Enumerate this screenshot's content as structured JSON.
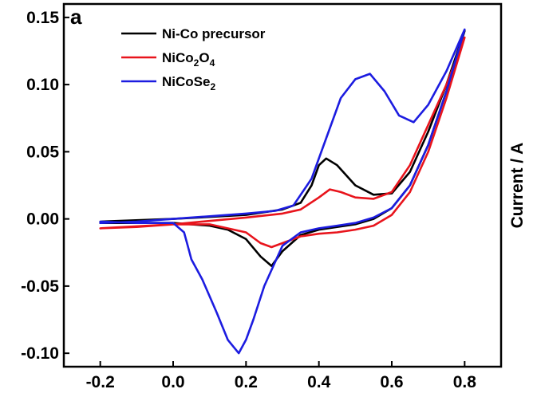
{
  "chart_data": {
    "type": "line",
    "panel_label": "a",
    "title": "",
    "xlabel": "",
    "ylabel": "Current / A",
    "xlim": [
      -0.3,
      0.9
    ],
    "ylim": [
      -0.11,
      0.16
    ],
    "xticks": [
      -0.2,
      0.0,
      0.2,
      0.4,
      0.6,
      0.8
    ],
    "xtick_labels": [
      "-0.2",
      "0.0",
      "0.2",
      "0.4",
      "0.6",
      "0.8"
    ],
    "yticks": [
      -0.1,
      -0.05,
      0.0,
      0.05,
      0.1,
      0.15
    ],
    "ytick_labels": [
      "-0.10",
      "-0.05",
      "0.00",
      "0.05",
      "0.10",
      "0.15"
    ],
    "grid": false,
    "legend_position": "top-left",
    "series": [
      {
        "name": "Ni-Co precursor",
        "color": "#000000",
        "x": [
          -0.2,
          0.0,
          0.2,
          0.3,
          0.35,
          0.38,
          0.4,
          0.42,
          0.45,
          0.5,
          0.55,
          0.6,
          0.65,
          0.7,
          0.75,
          0.8,
          0.75,
          0.7,
          0.65,
          0.6,
          0.55,
          0.5,
          0.45,
          0.4,
          0.35,
          0.3,
          0.27,
          0.24,
          0.2,
          0.15,
          0.1,
          0.05,
          0.0,
          -0.1,
          -0.2
        ],
        "y": [
          -0.002,
          0.0,
          0.003,
          0.007,
          0.012,
          0.025,
          0.04,
          0.045,
          0.04,
          0.025,
          0.018,
          0.019,
          0.035,
          0.065,
          0.1,
          0.14,
          0.095,
          0.055,
          0.025,
          0.008,
          0.0,
          -0.004,
          -0.006,
          -0.008,
          -0.012,
          -0.024,
          -0.035,
          -0.028,
          -0.015,
          -0.008,
          -0.005,
          -0.004,
          -0.003,
          -0.003,
          -0.003
        ]
      },
      {
        "name": "NiCo2O4",
        "color": "#e8141c",
        "x": [
          -0.2,
          0.0,
          0.2,
          0.3,
          0.35,
          0.4,
          0.43,
          0.46,
          0.5,
          0.55,
          0.6,
          0.65,
          0.7,
          0.75,
          0.8,
          0.75,
          0.7,
          0.65,
          0.6,
          0.55,
          0.5,
          0.45,
          0.4,
          0.35,
          0.3,
          0.27,
          0.24,
          0.2,
          0.1,
          0.0,
          -0.1,
          -0.2
        ],
        "y": [
          -0.007,
          -0.004,
          0.001,
          0.004,
          0.007,
          0.016,
          0.022,
          0.02,
          0.016,
          0.015,
          0.02,
          0.04,
          0.07,
          0.1,
          0.135,
          0.09,
          0.05,
          0.02,
          0.003,
          -0.005,
          -0.008,
          -0.01,
          -0.011,
          -0.013,
          -0.018,
          -0.021,
          -0.018,
          -0.01,
          -0.004,
          -0.004,
          -0.006,
          -0.007
        ]
      },
      {
        "name": "NiCoSe2",
        "color": "#1c1ce0",
        "x": [
          -0.2,
          -0.1,
          0.0,
          0.1,
          0.2,
          0.28,
          0.33,
          0.38,
          0.42,
          0.46,
          0.5,
          0.54,
          0.58,
          0.62,
          0.66,
          0.7,
          0.75,
          0.8,
          0.75,
          0.7,
          0.65,
          0.6,
          0.55,
          0.5,
          0.45,
          0.4,
          0.35,
          0.3,
          0.25,
          0.22,
          0.2,
          0.18,
          0.15,
          0.12,
          0.08,
          0.05,
          0.04,
          0.03,
          0.0,
          -0.1,
          -0.2
        ],
        "y": [
          -0.003,
          -0.002,
          0.0,
          0.002,
          0.004,
          0.006,
          0.01,
          0.03,
          0.06,
          0.09,
          0.104,
          0.108,
          0.095,
          0.077,
          0.072,
          0.085,
          0.11,
          0.141,
          0.095,
          0.055,
          0.025,
          0.008,
          0.001,
          -0.003,
          -0.005,
          -0.007,
          -0.01,
          -0.02,
          -0.05,
          -0.075,
          -0.09,
          -0.1,
          -0.09,
          -0.07,
          -0.045,
          -0.03,
          -0.02,
          -0.01,
          -0.003,
          -0.003,
          -0.002
        ]
      }
    ]
  }
}
